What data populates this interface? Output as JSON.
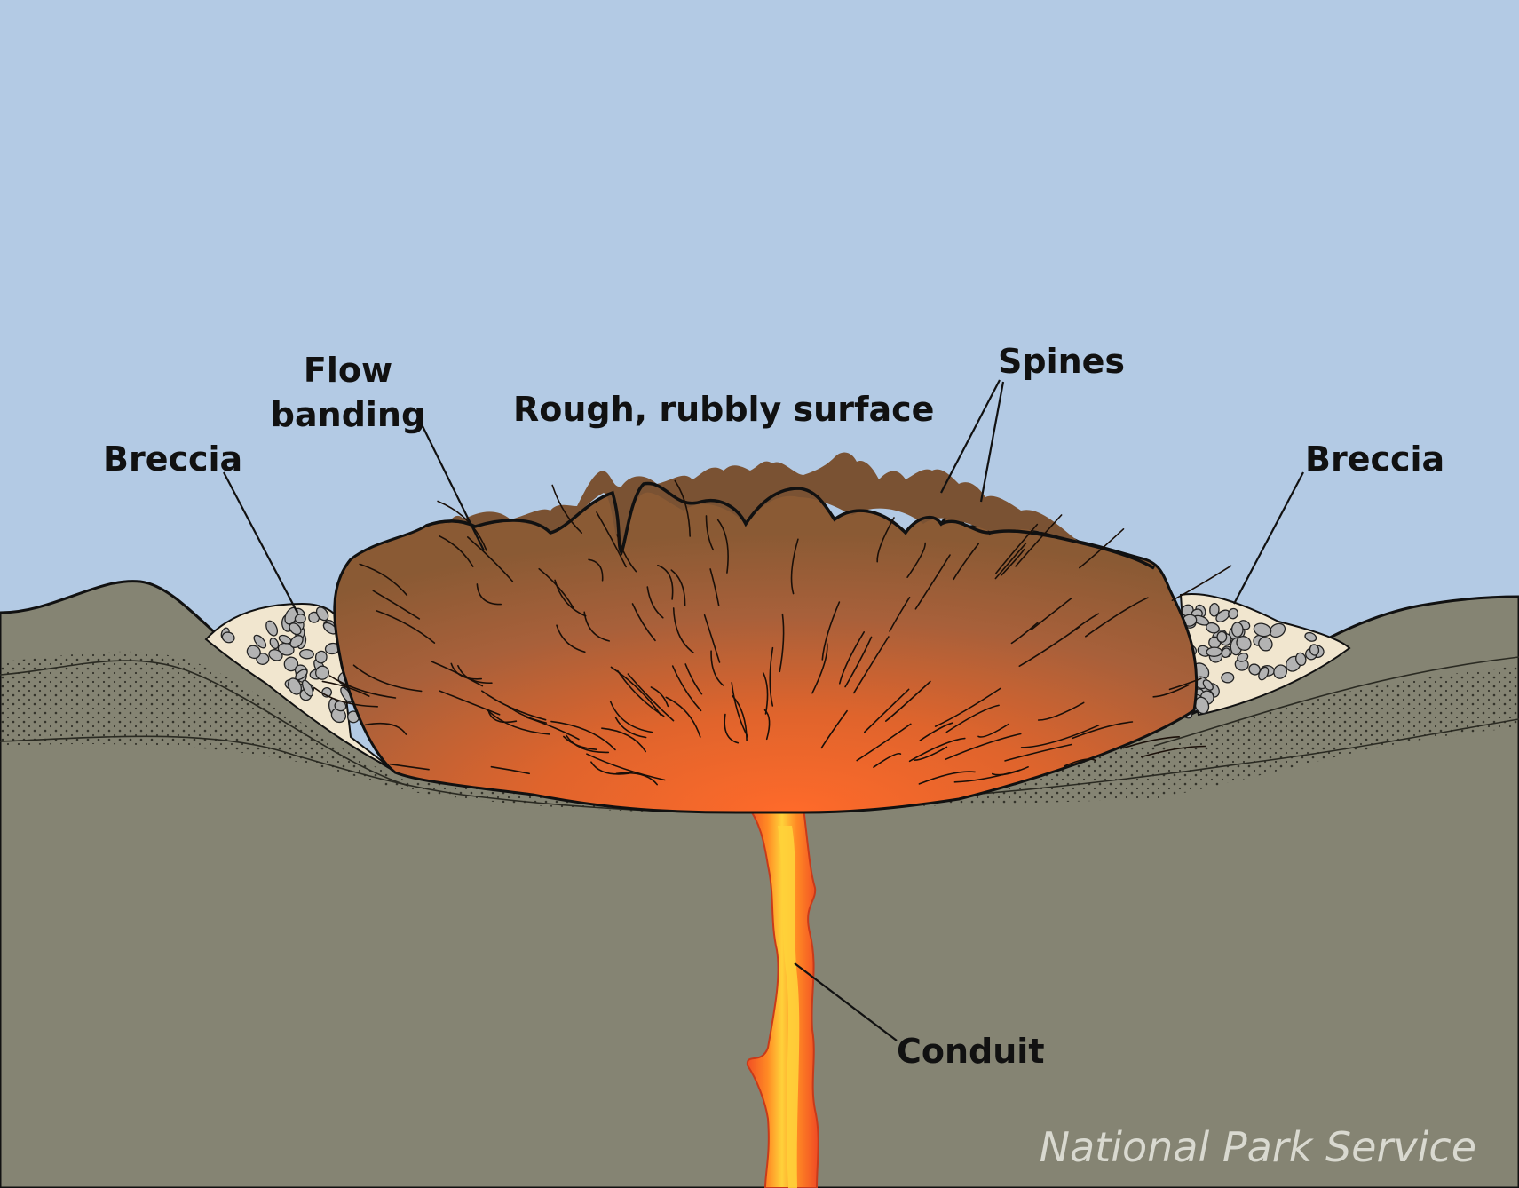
{
  "labels": {
    "flow_banding_line1": "Flow",
    "flow_banding_line2": "banding",
    "rough_surface": "Rough, rubbly surface",
    "spines": "Spines",
    "breccia_left": "Breccia",
    "breccia_right": "Breccia",
    "conduit": "Conduit"
  },
  "credit": "National Park Service",
  "colors": {
    "sky": "#b3cae4",
    "ground": "#858473",
    "dome": "#8a5a34",
    "dome_top": "#7a5233",
    "magma_hot": "#ff6a2a",
    "magma_core": "#ffcf3a",
    "breccia_fill": "#f1e6cf",
    "breccia_rock": "#b3b3b3",
    "credit_text": "#d9d9d0",
    "outline": "#111111"
  }
}
